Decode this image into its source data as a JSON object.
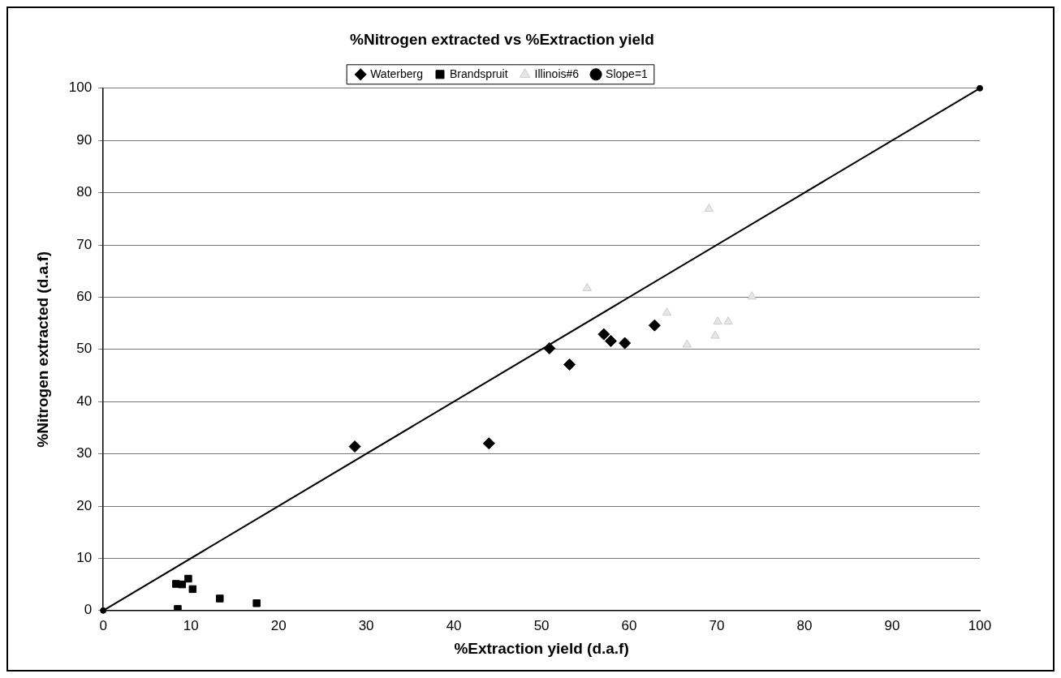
{
  "chart_data": {
    "type": "scatter",
    "title": "%Nitrogen extracted vs %Extraction yield",
    "xlabel": "%Extraction yield (d.a.f)",
    "ylabel": "%Nitrogen extracted (d.a.f)",
    "xlim": [
      0,
      100
    ],
    "xticks": [
      0,
      10,
      20,
      30,
      40,
      50,
      60,
      70,
      80,
      90,
      100
    ],
    "ylim": [
      0,
      100
    ],
    "yticks": [
      0,
      10,
      20,
      30,
      40,
      50,
      60,
      70,
      80,
      90,
      100
    ],
    "grid": "y",
    "legend": "top",
    "series": [
      {
        "name": "Waterberg",
        "color": "#000000",
        "marker": "diamond",
        "x": [
          28.7,
          44.0,
          50.9,
          53.2,
          57.1,
          57.9,
          59.5,
          62.9
        ],
        "values": [
          31.4,
          32.0,
          50.2,
          47.1,
          52.9,
          51.6,
          51.2,
          54.6
        ]
      },
      {
        "name": "Brandspruit",
        "color": "#000000",
        "marker": "square",
        "x": [
          8.5,
          8.3,
          9.0,
          9.7,
          10.2,
          13.3,
          17.5
        ],
        "values": [
          0.3,
          5.1,
          5.0,
          6.1,
          4.1,
          2.3,
          1.4
        ]
      },
      {
        "name": "Illinois#6",
        "color": "#cccccc",
        "marker": "triangle",
        "x": [
          55.2,
          64.3,
          66.6,
          69.1,
          69.8,
          70.1,
          71.3,
          74.0
        ],
        "values": [
          61.7,
          57.0,
          50.9,
          76.9,
          52.6,
          55.3,
          55.3,
          60.1
        ]
      },
      {
        "name": "Slope=1",
        "type": "line",
        "color": "#000000",
        "marker": "circle",
        "line_style": "solid",
        "x": [
          0,
          100
        ],
        "values": [
          0,
          100
        ]
      }
    ]
  }
}
